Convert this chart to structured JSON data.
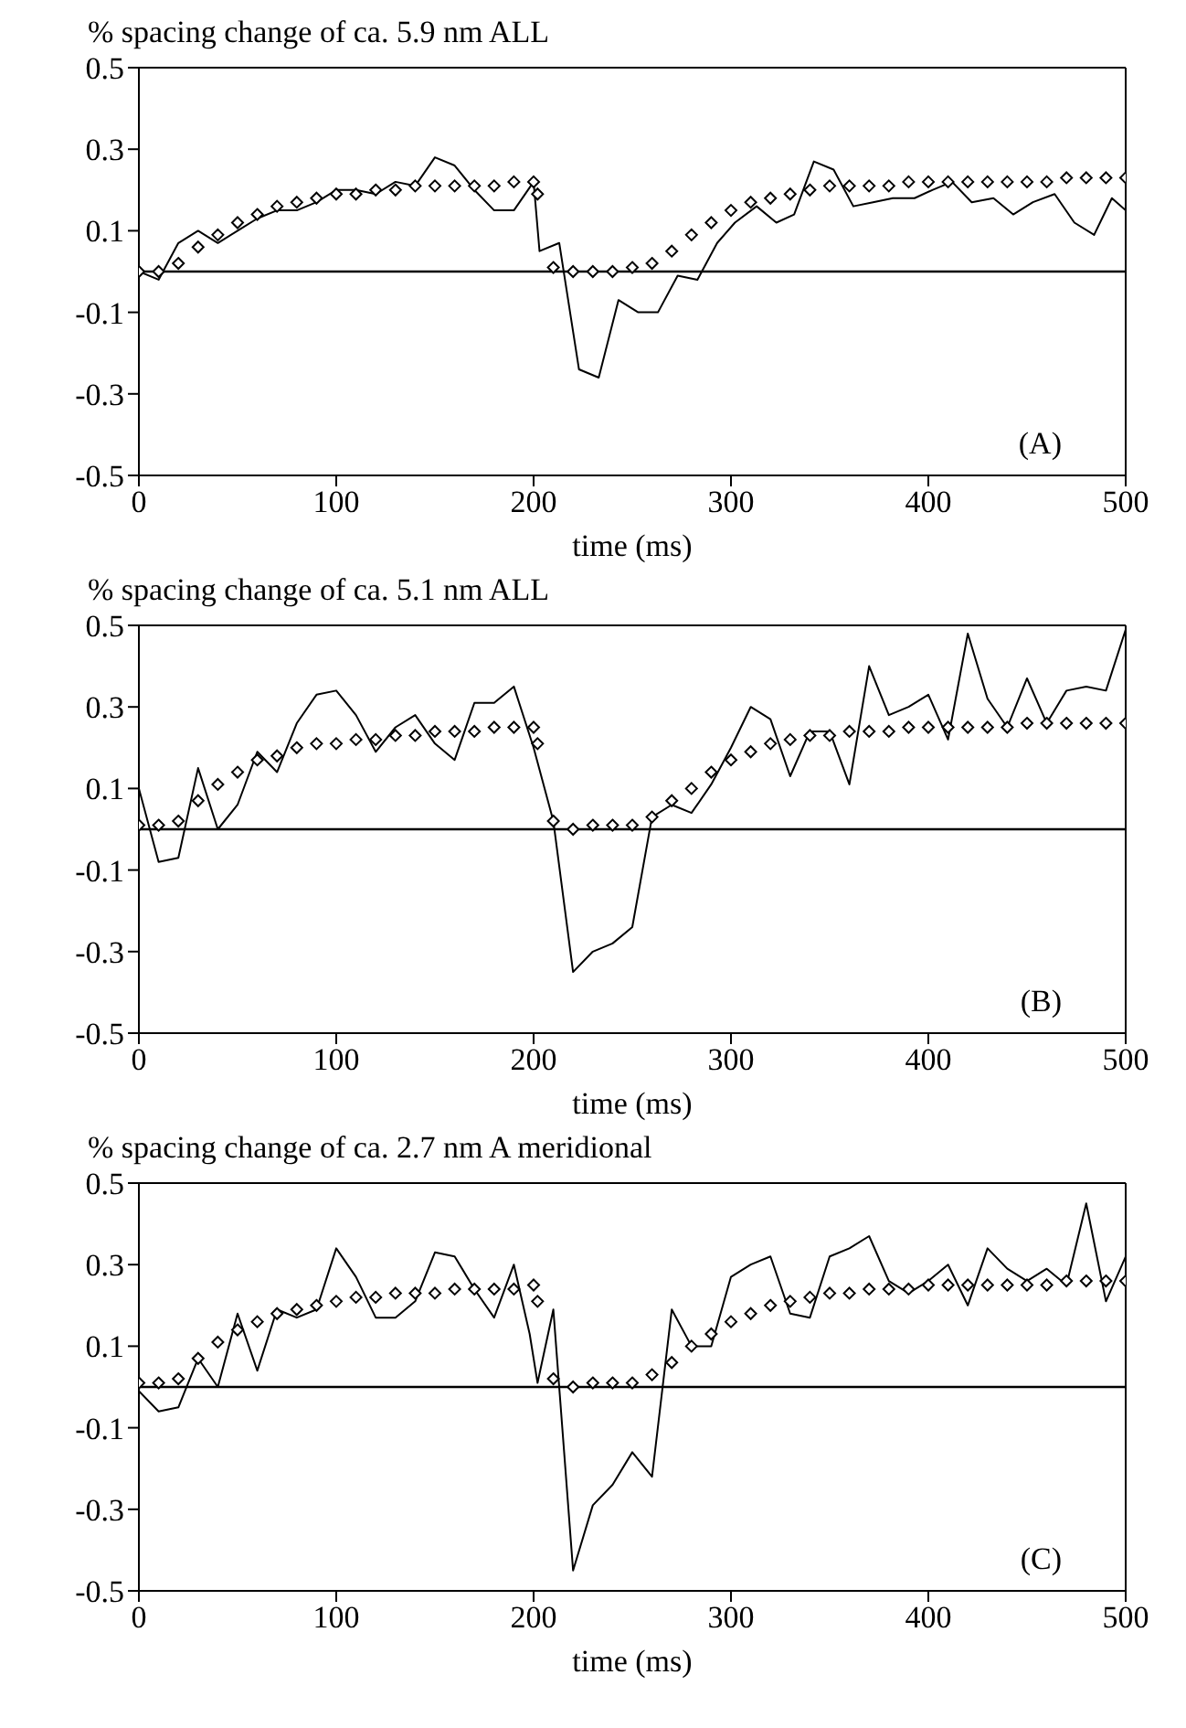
{
  "chart_data": [
    {
      "type": "line",
      "title": "% spacing change of ca. 5.9 nm ALL",
      "xlabel": "time  (ms)",
      "xlim": [
        0,
        500
      ],
      "xticks": [
        0,
        100,
        200,
        300,
        400,
        500
      ],
      "ylim": [
        -0.5,
        0.5
      ],
      "yticks": [
        0.5,
        0.3,
        0.1,
        -0.1,
        -0.3,
        -0.5
      ],
      "annotations": [
        "(A)"
      ],
      "ref_lines": [
        {
          "axis": "y",
          "value": 0,
          "color": "#000000"
        }
      ],
      "series": [
        {
          "color": "#000000",
          "marker": "none",
          "x": [
            0,
            10,
            20,
            30,
            40,
            50,
            60,
            70,
            80,
            90,
            100,
            110,
            120,
            130,
            140,
            150,
            160,
            170,
            180,
            190,
            200,
            203,
            213,
            223,
            233,
            243,
            253,
            263,
            273,
            283,
            293,
            302,
            313,
            323,
            332,
            342,
            352,
            362,
            372,
            382,
            393,
            402,
            412,
            422,
            433,
            443,
            453,
            464,
            474,
            484,
            493,
            500
          ],
          "values": [
            0.0,
            -0.02,
            0.07,
            0.1,
            0.07,
            0.1,
            0.13,
            0.15,
            0.15,
            0.17,
            0.2,
            0.2,
            0.19,
            0.22,
            0.21,
            0.28,
            0.26,
            0.2,
            0.15,
            0.15,
            0.22,
            0.05,
            0.07,
            -0.24,
            -0.26,
            -0.07,
            -0.1,
            -0.1,
            -0.01,
            -0.02,
            0.07,
            0.12,
            0.16,
            0.12,
            0.14,
            0.27,
            0.25,
            0.16,
            0.17,
            0.18,
            0.18,
            0.2,
            0.22,
            0.17,
            0.18,
            0.14,
            0.17,
            0.19,
            0.12,
            0.09,
            0.18,
            0.15
          ]
        },
        {
          "type": "scatter",
          "color": "#000000",
          "marker": "diamond",
          "x": [
            0,
            10,
            20,
            30,
            40,
            50,
            60,
            70,
            80,
            90,
            100,
            110,
            120,
            130,
            140,
            150,
            160,
            170,
            180,
            190,
            200,
            202,
            210,
            220,
            230,
            240,
            250,
            260,
            270,
            280,
            290,
            300,
            310,
            320,
            330,
            340,
            350,
            360,
            370,
            380,
            390,
            400,
            410,
            420,
            430,
            440,
            450,
            460,
            470,
            480,
            490,
            500
          ],
          "values": [
            0.0,
            0.0,
            0.02,
            0.06,
            0.09,
            0.12,
            0.14,
            0.16,
            0.17,
            0.18,
            0.19,
            0.19,
            0.2,
            0.2,
            0.21,
            0.21,
            0.21,
            0.21,
            0.21,
            0.22,
            0.22,
            0.19,
            0.01,
            0.0,
            0.0,
            0.0,
            0.01,
            0.02,
            0.05,
            0.09,
            0.12,
            0.15,
            0.17,
            0.18,
            0.19,
            0.2,
            0.21,
            0.21,
            0.21,
            0.21,
            0.22,
            0.22,
            0.22,
            0.22,
            0.22,
            0.22,
            0.22,
            0.22,
            0.23,
            0.23,
            0.23,
            0.23
          ]
        }
      ]
    },
    {
      "type": "line",
      "title": "% spacing change of ca. 5.1 nm ALL",
      "xlabel": "time  (ms)",
      "xlim": [
        0,
        500
      ],
      "xticks": [
        0,
        100,
        200,
        300,
        400,
        500
      ],
      "ylim": [
        -0.5,
        0.5
      ],
      "yticks": [
        0.5,
        0.3,
        0.1,
        -0.1,
        -0.3,
        -0.5
      ],
      "annotations": [
        "(B)"
      ],
      "ref_lines": [
        {
          "axis": "y",
          "value": 0,
          "color": "#000000"
        }
      ],
      "series": [
        {
          "color": "#000000",
          "marker": "none",
          "x": [
            0,
            10,
            20,
            30,
            40,
            50,
            60,
            70,
            80,
            90,
            100,
            110,
            120,
            130,
            140,
            150,
            160,
            170,
            180,
            190,
            200,
            210,
            220,
            230,
            240,
            250,
            260,
            270,
            280,
            290,
            300,
            310,
            320,
            330,
            340,
            350,
            360,
            370,
            380,
            390,
            400,
            410,
            420,
            430,
            440,
            450,
            460,
            470,
            480,
            490,
            500
          ],
          "values": [
            0.1,
            -0.08,
            -0.07,
            0.15,
            0.0,
            0.06,
            0.19,
            0.14,
            0.26,
            0.33,
            0.34,
            0.28,
            0.19,
            0.25,
            0.28,
            0.21,
            0.17,
            0.31,
            0.31,
            0.35,
            0.2,
            0.02,
            -0.35,
            -0.3,
            -0.28,
            -0.24,
            0.03,
            0.06,
            0.04,
            0.11,
            0.2,
            0.3,
            0.27,
            0.13,
            0.24,
            0.24,
            0.11,
            0.4,
            0.28,
            0.3,
            0.33,
            0.22,
            0.48,
            0.32,
            0.25,
            0.37,
            0.26,
            0.34,
            0.35,
            0.34,
            0.49
          ]
        },
        {
          "type": "scatter",
          "color": "#000000",
          "marker": "diamond",
          "x": [
            0,
            10,
            20,
            30,
            40,
            50,
            60,
            70,
            80,
            90,
            100,
            110,
            120,
            130,
            140,
            150,
            160,
            170,
            180,
            190,
            200,
            202,
            210,
            220,
            230,
            240,
            250,
            260,
            270,
            280,
            290,
            300,
            310,
            320,
            330,
            340,
            350,
            360,
            370,
            380,
            390,
            400,
            410,
            420,
            430,
            440,
            450,
            460,
            470,
            480,
            490,
            500
          ],
          "values": [
            0.01,
            0.01,
            0.02,
            0.07,
            0.11,
            0.14,
            0.17,
            0.18,
            0.2,
            0.21,
            0.21,
            0.22,
            0.22,
            0.23,
            0.23,
            0.24,
            0.24,
            0.24,
            0.25,
            0.25,
            0.25,
            0.21,
            0.02,
            0.0,
            0.01,
            0.01,
            0.01,
            0.03,
            0.07,
            0.1,
            0.14,
            0.17,
            0.19,
            0.21,
            0.22,
            0.23,
            0.23,
            0.24,
            0.24,
            0.24,
            0.25,
            0.25,
            0.25,
            0.25,
            0.25,
            0.25,
            0.26,
            0.26,
            0.26,
            0.26,
            0.26,
            0.26
          ]
        }
      ]
    },
    {
      "type": "line",
      "title": "% spacing change of ca. 2.7 nm A meridional",
      "xlabel": "time  (ms)",
      "xlim": [
        0,
        500
      ],
      "xticks": [
        0,
        100,
        200,
        300,
        400,
        500
      ],
      "ylim": [
        -0.5,
        0.5
      ],
      "yticks": [
        0.5,
        0.3,
        0.1,
        -0.1,
        -0.3,
        -0.5
      ],
      "annotations": [
        "(C)"
      ],
      "ref_lines": [
        {
          "axis": "y",
          "value": 0,
          "color": "#000000"
        }
      ],
      "series": [
        {
          "color": "#000000",
          "marker": "none",
          "x": [
            0,
            10,
            20,
            30,
            40,
            50,
            60,
            70,
            80,
            90,
            100,
            110,
            120,
            130,
            140,
            150,
            160,
            170,
            180,
            190,
            198,
            202,
            210,
            220,
            230,
            240,
            250,
            260,
            270,
            280,
            290,
            300,
            310,
            320,
            330,
            340,
            350,
            360,
            370,
            380,
            390,
            400,
            410,
            420,
            430,
            440,
            450,
            460,
            470,
            480,
            490,
            500
          ],
          "values": [
            -0.01,
            -0.06,
            -0.05,
            0.07,
            0.0,
            0.18,
            0.04,
            0.19,
            0.17,
            0.19,
            0.34,
            0.27,
            0.17,
            0.17,
            0.21,
            0.33,
            0.32,
            0.24,
            0.17,
            0.3,
            0.13,
            0.01,
            0.19,
            -0.45,
            -0.29,
            -0.24,
            -0.16,
            -0.22,
            0.19,
            0.1,
            0.1,
            0.27,
            0.3,
            0.32,
            0.18,
            0.17,
            0.32,
            0.34,
            0.37,
            0.26,
            0.23,
            0.26,
            0.3,
            0.2,
            0.34,
            0.29,
            0.26,
            0.29,
            0.25,
            0.45,
            0.21,
            0.32
          ]
        },
        {
          "type": "scatter",
          "color": "#000000",
          "marker": "diamond",
          "x": [
            0,
            10,
            20,
            30,
            40,
            50,
            60,
            70,
            80,
            90,
            100,
            110,
            120,
            130,
            140,
            150,
            160,
            170,
            180,
            190,
            200,
            202,
            210,
            220,
            230,
            240,
            250,
            260,
            270,
            280,
            290,
            300,
            310,
            320,
            330,
            340,
            350,
            360,
            370,
            380,
            390,
            400,
            410,
            420,
            430,
            440,
            450,
            460,
            470,
            480,
            490,
            500
          ],
          "values": [
            0.01,
            0.01,
            0.02,
            0.07,
            0.11,
            0.14,
            0.16,
            0.18,
            0.19,
            0.2,
            0.21,
            0.22,
            0.22,
            0.23,
            0.23,
            0.23,
            0.24,
            0.24,
            0.24,
            0.24,
            0.25,
            0.21,
            0.02,
            0.0,
            0.01,
            0.01,
            0.01,
            0.03,
            0.06,
            0.1,
            0.13,
            0.16,
            0.18,
            0.2,
            0.21,
            0.22,
            0.23,
            0.23,
            0.24,
            0.24,
            0.24,
            0.25,
            0.25,
            0.25,
            0.25,
            0.25,
            0.25,
            0.25,
            0.26,
            0.26,
            0.26,
            0.26
          ]
        }
      ]
    }
  ]
}
